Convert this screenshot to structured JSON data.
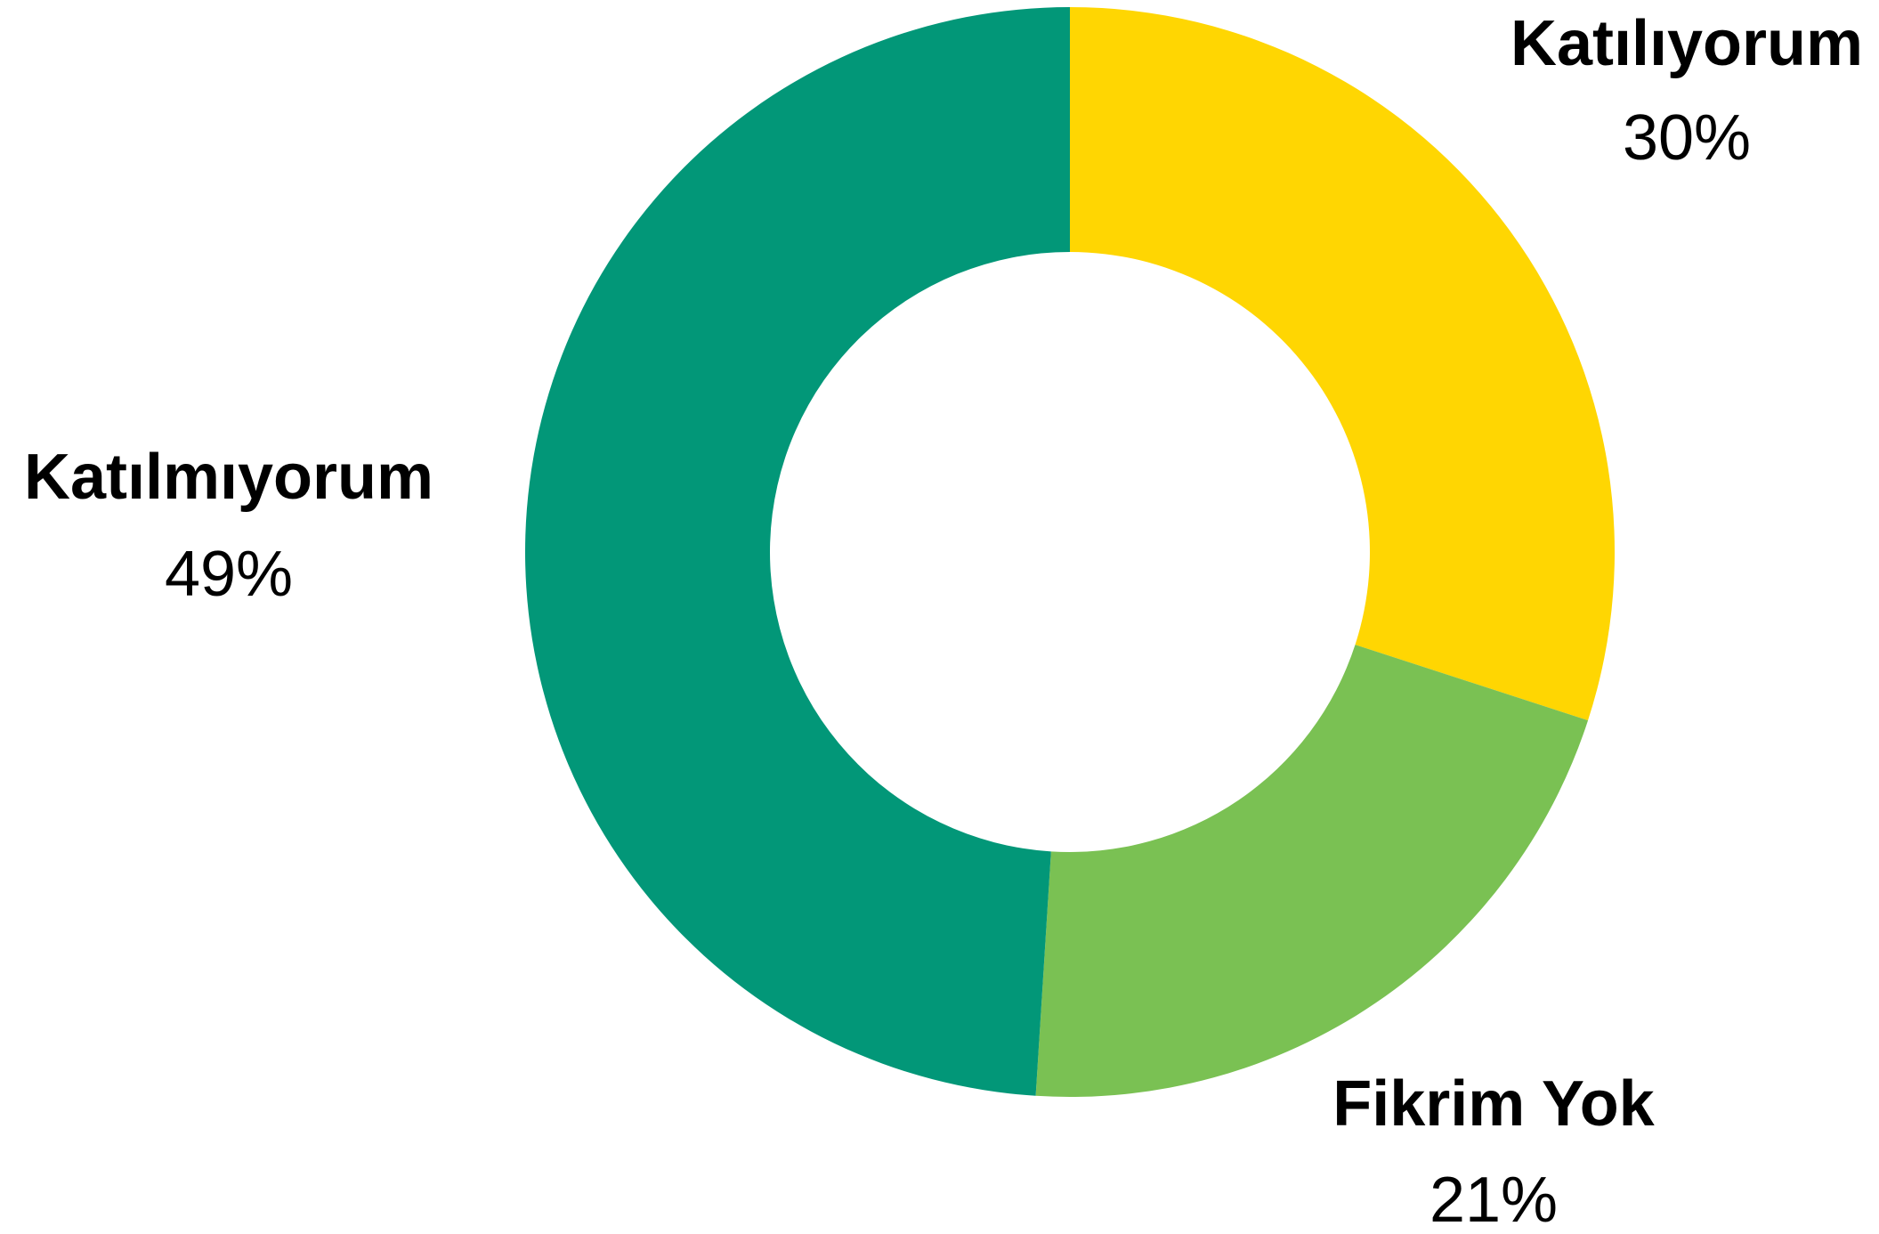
{
  "chart_data": {
    "type": "donut",
    "categories": [
      "Katılıyorum",
      "Fikrim Yok",
      "Katılmıyorum"
    ],
    "values": [
      30,
      21,
      49
    ],
    "value_labels": [
      "30%",
      "21%",
      "49%"
    ],
    "colors": [
      "#ffd602",
      "#7ac153",
      "#029778"
    ]
  }
}
